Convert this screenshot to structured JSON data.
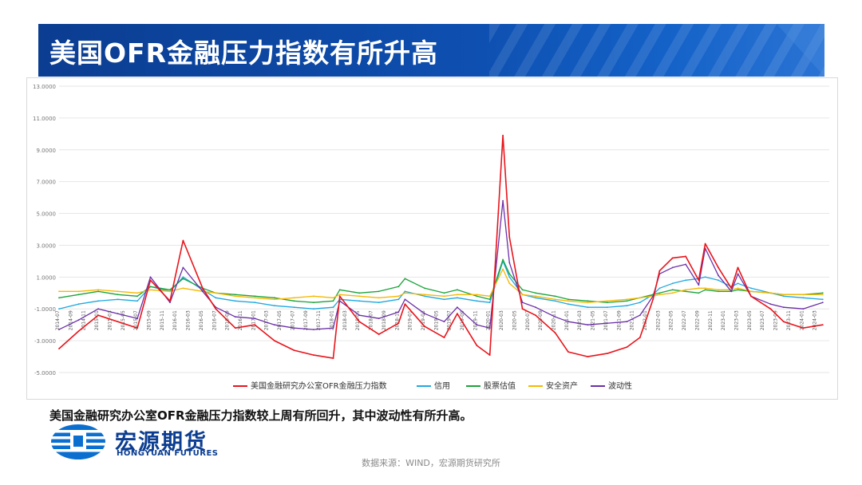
{
  "header": {
    "title": "美国OFR金融压力指数有所升高"
  },
  "comment": "美国金融研究办公室OFR金融压力指数较上周有所回升，其中波动性有所升高。",
  "logo": {
    "name_cn": "宏源期货",
    "name_en": "HONGYUAN FUTURES"
  },
  "source": "数据来源：WIND，宏源期货研究所",
  "colors": {
    "banner": "#0b3d91",
    "brand": "#0b3d91"
  },
  "chart_data": {
    "type": "line",
    "title": "",
    "xlabel": "",
    "ylabel": "",
    "ylim": [
      -5,
      13
    ],
    "yticks": [
      "-5.0000",
      "-3.0000",
      "-1.0000",
      "1.0000",
      "3.0000",
      "5.0000",
      "7.0000",
      "9.0000",
      "11.0000",
      "13.0000"
    ],
    "xticks": [
      "2014-07",
      "2014-09",
      "2014-11",
      "2015-01",
      "2015-03",
      "2015-05",
      "2015-07",
      "2015-09",
      "2015-11",
      "2016-01",
      "2016-03",
      "2016-05",
      "2016-07",
      "2016-09",
      "2016-11",
      "2017-01",
      "2017-03",
      "2017-05",
      "2017-07",
      "2017-09",
      "2017-11",
      "2018-01",
      "2018-03",
      "2018-05",
      "2018-07",
      "2018-09",
      "2018-11",
      "2019-01",
      "2019-03",
      "2019-05",
      "2019-07",
      "2019-09",
      "2019-11",
      "2020-01",
      "2020-03",
      "2020-05",
      "2020-07",
      "2020-09",
      "2020-11",
      "2021-01",
      "2021-03",
      "2021-05",
      "2021-07",
      "2021-09",
      "2021-11",
      "2022-01",
      "2022-03",
      "2022-05",
      "2022-07",
      "2022-09",
      "2022-11",
      "2023-01",
      "2023-03",
      "2023-05",
      "2023-07",
      "2023-09",
      "2023-11",
      "2024-01",
      "2024-03"
    ],
    "x": [
      "2014-07",
      "2014-10",
      "2015-01",
      "2015-04",
      "2015-07",
      "2015-09",
      "2015-12",
      "2016-02",
      "2016-05",
      "2016-07",
      "2016-10",
      "2017-01",
      "2017-04",
      "2017-07",
      "2017-10",
      "2018-01",
      "2018-02",
      "2018-05",
      "2018-08",
      "2018-11",
      "2018-12",
      "2019-03",
      "2019-06",
      "2019-08",
      "2019-11",
      "2020-01",
      "2020-03",
      "2020-04",
      "2020-06",
      "2020-08",
      "2020-11",
      "2021-01",
      "2021-04",
      "2021-07",
      "2021-10",
      "2021-12",
      "2022-02",
      "2022-03",
      "2022-05",
      "2022-07",
      "2022-09",
      "2022-10",
      "2022-12",
      "2023-02",
      "2023-03",
      "2023-05",
      "2023-08",
      "2023-10",
      "2024-01",
      "2024-04"
    ],
    "series": [
      {
        "name": "美国金融研究办公室OFR金融压力指数",
        "color": "#e8141b",
        "values": [
          -3.5,
          -2.4,
          -1.4,
          -1.8,
          -2.2,
          0.8,
          -0.5,
          3.3,
          0.3,
          -1.0,
          -2.2,
          -2.0,
          -3.0,
          -3.6,
          -3.9,
          -4.1,
          -0.2,
          -1.8,
          -2.6,
          -1.9,
          -0.7,
          -2.1,
          -2.8,
          -1.3,
          -3.3,
          -3.9,
          9.9,
          3.5,
          -1.0,
          -1.4,
          -2.5,
          -3.7,
          -4.0,
          -3.8,
          -3.4,
          -2.8,
          -0.4,
          1.4,
          2.2,
          2.3,
          0.8,
          3.1,
          1.6,
          0.3,
          1.6,
          -0.2,
          -1.0,
          -1.8,
          -2.2,
          -2.0
        ]
      },
      {
        "name": "信用",
        "color": "#1fa8e0",
        "values": [
          -1.0,
          -0.7,
          -0.5,
          -0.4,
          -0.5,
          0.4,
          0.1,
          1.0,
          0.2,
          -0.3,
          -0.5,
          -0.6,
          -0.8,
          -0.9,
          -1.0,
          -0.9,
          -0.4,
          -0.5,
          -0.6,
          -0.4,
          0.1,
          -0.2,
          -0.4,
          -0.3,
          -0.5,
          -0.6,
          2.0,
          1.0,
          -0.1,
          -0.3,
          -0.5,
          -0.7,
          -0.9,
          -0.9,
          -0.8,
          -0.6,
          -0.1,
          0.3,
          0.6,
          0.8,
          0.9,
          1.0,
          0.8,
          0.4,
          0.6,
          0.3,
          0.0,
          -0.2,
          -0.3,
          -0.4
        ]
      },
      {
        "name": "股票估值",
        "color": "#1aa33a",
        "values": [
          -0.3,
          -0.1,
          0.1,
          -0.1,
          -0.2,
          0.4,
          0.2,
          0.9,
          0.3,
          0.0,
          -0.1,
          -0.2,
          -0.3,
          -0.5,
          -0.6,
          -0.5,
          0.2,
          0.0,
          0.1,
          0.4,
          0.9,
          0.3,
          0.0,
          0.2,
          -0.2,
          -0.4,
          2.1,
          1.2,
          0.2,
          0.0,
          -0.2,
          -0.4,
          -0.5,
          -0.6,
          -0.5,
          -0.3,
          -0.1,
          0.0,
          0.2,
          0.1,
          0.0,
          0.2,
          0.1,
          0.1,
          0.2,
          0.1,
          0.0,
          -0.1,
          -0.1,
          0.0
        ]
      },
      {
        "name": "安全资产",
        "color": "#f5b800",
        "values": [
          0.1,
          0.1,
          0.2,
          0.1,
          0.0,
          0.2,
          0.1,
          0.3,
          0.1,
          0.0,
          -0.2,
          -0.3,
          -0.4,
          -0.3,
          -0.2,
          -0.3,
          -0.1,
          -0.2,
          -0.3,
          -0.2,
          0.0,
          -0.1,
          -0.2,
          -0.1,
          -0.1,
          -0.2,
          1.5,
          0.6,
          -0.1,
          -0.2,
          -0.4,
          -0.5,
          -0.6,
          -0.5,
          -0.4,
          -0.3,
          -0.2,
          -0.1,
          0.0,
          0.2,
          0.3,
          0.3,
          0.2,
          0.2,
          0.3,
          0.1,
          0.0,
          -0.1,
          -0.1,
          -0.1
        ]
      },
      {
        "name": "波动性",
        "color": "#6b2fa8",
        "values": [
          -2.3,
          -1.7,
          -1.0,
          -1.3,
          -1.6,
          1.0,
          -0.6,
          1.6,
          0.1,
          -0.9,
          -1.5,
          -1.6,
          -2.0,
          -2.2,
          -2.3,
          -2.2,
          -0.5,
          -1.4,
          -1.6,
          -1.2,
          -0.4,
          -1.3,
          -1.8,
          -0.9,
          -2.0,
          -2.2,
          5.8,
          1.9,
          -0.6,
          -0.9,
          -1.5,
          -1.8,
          -2.0,
          -1.9,
          -1.8,
          -1.4,
          -0.2,
          1.2,
          1.6,
          1.8,
          0.5,
          2.8,
          1.1,
          0.1,
          1.2,
          -0.2,
          -0.7,
          -0.9,
          -1.0,
          -0.6
        ]
      }
    ],
    "legend_position": "bottom",
    "grid": true
  }
}
